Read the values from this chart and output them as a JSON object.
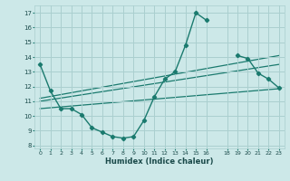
{
  "xlabel": "Humidex (Indice chaleur)",
  "background_color": "#cce8e8",
  "grid_color": "#aacfcf",
  "line_color": "#1a7a6e",
  "xlim": [
    -0.5,
    23.5
  ],
  "ylim": [
    7.8,
    17.5
  ],
  "xticks": [
    0,
    1,
    2,
    3,
    4,
    5,
    6,
    7,
    8,
    9,
    10,
    11,
    12,
    13,
    14,
    15,
    16,
    18,
    19,
    20,
    21,
    22,
    23
  ],
  "yticks": [
    8,
    9,
    10,
    11,
    12,
    13,
    14,
    15,
    16,
    17
  ],
  "series_x": [
    0,
    1,
    2,
    3,
    4,
    5,
    6,
    7,
    8,
    9,
    10,
    11,
    12,
    13,
    14,
    15,
    16,
    19,
    20,
    21,
    22,
    23
  ],
  "series_y": [
    13.5,
    11.7,
    10.5,
    10.5,
    10.1,
    9.2,
    8.9,
    8.6,
    8.5,
    8.6,
    9.7,
    11.3,
    12.5,
    13.0,
    14.8,
    17.0,
    16.5,
    14.1,
    13.9,
    12.9,
    12.5,
    11.9
  ],
  "trend_lines": [
    {
      "x": [
        0,
        23
      ],
      "y": [
        10.5,
        11.85
      ]
    },
    {
      "x": [
        0,
        23
      ],
      "y": [
        11.0,
        13.5
      ]
    },
    {
      "x": [
        0,
        23
      ],
      "y": [
        11.2,
        14.1
      ]
    }
  ]
}
